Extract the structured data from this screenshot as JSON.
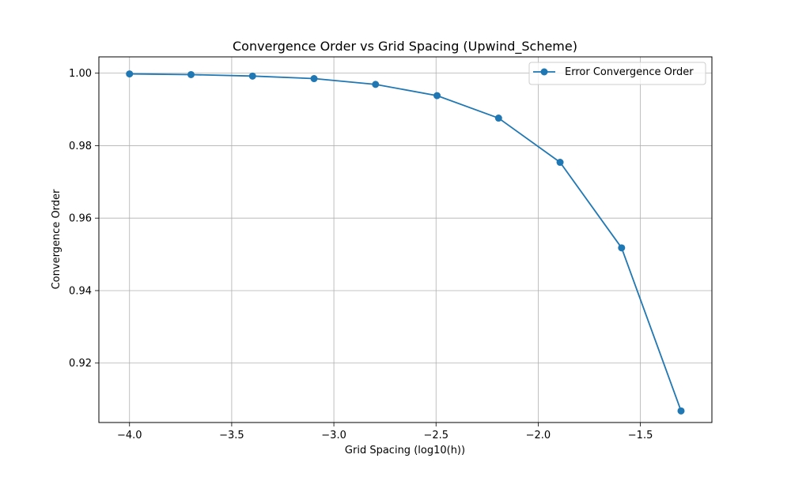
{
  "chart_data": {
    "type": "line",
    "title": "Convergence Order vs Grid Spacing (Upwind_Scheme)",
    "xlabel": "Grid Spacing (log10(h))",
    "ylabel": "Convergence Order",
    "xlim": [
      -4.15,
      -1.15
    ],
    "ylim": [
      0.9036,
      1.0045
    ],
    "xticks": [
      -4.0,
      -3.5,
      -3.0,
      -2.5,
      -2.0,
      -1.5
    ],
    "xtick_labels": [
      "−4.0",
      "−3.5",
      "−3.0",
      "−2.5",
      "−2.0",
      "−1.5"
    ],
    "yticks": [
      0.92,
      0.94,
      0.96,
      0.98,
      1.0
    ],
    "ytick_labels": [
      "0.92",
      "0.94",
      "0.96",
      "0.98",
      "1.00"
    ],
    "grid": true,
    "legend_position": "top-right",
    "series": [
      {
        "name": "Error Convergence Order",
        "color": "#1f77b4",
        "marker": "circle",
        "x": [
          -4.0,
          -3.699,
          -3.398,
          -3.097,
          -2.796,
          -2.495,
          -2.194,
          -1.893,
          -1.592,
          -1.301
        ],
        "y": [
          0.9998,
          0.9996,
          0.9992,
          0.9985,
          0.9969,
          0.9938,
          0.9876,
          0.9754,
          0.9518,
          0.9068
        ]
      }
    ]
  }
}
